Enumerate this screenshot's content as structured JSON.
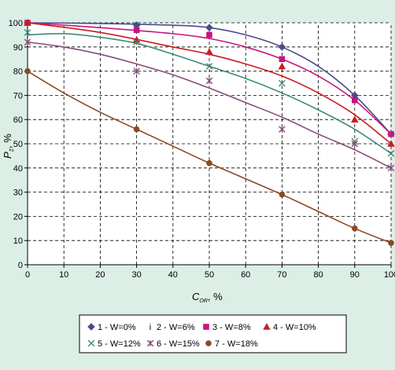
{
  "chart_data": {
    "type": "scatter",
    "xlabel": {
      "main": "C",
      "sub": "OR",
      "unit": ", %"
    },
    "ylabel": {
      "main": "P",
      "sub": "Σ",
      "unit": ", %"
    },
    "xlim": [
      0,
      100
    ],
    "ylim": [
      0,
      100
    ],
    "xticks": [
      0,
      10,
      20,
      30,
      40,
      50,
      60,
      70,
      80,
      90,
      100
    ],
    "yticks": [
      0,
      10,
      20,
      30,
      40,
      50,
      60,
      70,
      80,
      90,
      100
    ],
    "grid": true,
    "legend_position": "bottom",
    "series": [
      {
        "name": "1 - W=0%",
        "color": "#4a4a8c",
        "marker": "diamond",
        "x": [
          0,
          30,
          50,
          70,
          90,
          100
        ],
        "y": [
          100,
          99,
          98,
          90,
          70,
          54
        ],
        "curve": [
          [
            0,
            100
          ],
          [
            20,
            99.7
          ],
          [
            40,
            99
          ],
          [
            50,
            98
          ],
          [
            60,
            95
          ],
          [
            70,
            90
          ],
          [
            80,
            82
          ],
          [
            90,
            70
          ],
          [
            100,
            54
          ]
        ]
      },
      {
        "name": "2 - W=6%",
        "color": "#8a8a8a",
        "marker": "bar",
        "x": [
          0,
          30,
          50,
          70,
          90,
          100
        ],
        "y": [
          100,
          97,
          96,
          89,
          69,
          54
        ],
        "curve": []
      },
      {
        "name": "3 - W=8%",
        "color": "#c8157f",
        "marker": "square",
        "x": [
          0,
          30,
          50,
          70,
          90,
          100
        ],
        "y": [
          100,
          97,
          95,
          85,
          68,
          54
        ],
        "curve": [
          [
            0,
            100
          ],
          [
            20,
            98
          ],
          [
            40,
            95.5
          ],
          [
            50,
            93.5
          ],
          [
            60,
            90
          ],
          [
            70,
            85
          ],
          [
            80,
            78
          ],
          [
            90,
            68
          ],
          [
            100,
            54
          ]
        ]
      },
      {
        "name": "4 - W=10%",
        "color": "#c81e1e",
        "marker": "triangle",
        "x": [
          0,
          30,
          50,
          70,
          90,
          100
        ],
        "y": [
          100,
          93,
          88,
          82,
          60,
          50
        ],
        "curve": [
          [
            0,
            100
          ],
          [
            20,
            96
          ],
          [
            40,
            90
          ],
          [
            50,
            87
          ],
          [
            60,
            83
          ],
          [
            70,
            78
          ],
          [
            80,
            71
          ],
          [
            90,
            62
          ],
          [
            100,
            50
          ]
        ]
      },
      {
        "name": "5 - W=12%",
        "color": "#3f8a76",
        "marker": "x",
        "x": [
          0,
          30,
          50,
          70,
          90,
          100
        ],
        "y": [
          96,
          92,
          82,
          75,
          51,
          46
        ],
        "curve": [
          [
            0,
            95
          ],
          [
            10,
            95.5
          ],
          [
            20,
            94
          ],
          [
            30,
            91.5
          ],
          [
            40,
            87
          ],
          [
            50,
            82
          ],
          [
            60,
            77
          ],
          [
            70,
            71
          ],
          [
            80,
            64
          ],
          [
            90,
            56
          ],
          [
            100,
            46
          ]
        ]
      },
      {
        "name": "6 - W=15%",
        "color": "#8a4a7a",
        "marker": "star",
        "x": [
          0,
          30,
          50,
          70,
          90,
          100
        ],
        "y": [
          92,
          80,
          76,
          56,
          50,
          40
        ],
        "curve": [
          [
            0,
            92
          ],
          [
            10,
            90
          ],
          [
            20,
            87
          ],
          [
            30,
            83
          ],
          [
            40,
            78.5
          ],
          [
            50,
            73
          ],
          [
            60,
            67
          ],
          [
            70,
            61
          ],
          [
            80,
            54
          ],
          [
            90,
            47.5
          ],
          [
            100,
            40
          ]
        ]
      },
      {
        "name": "7 - W=18%",
        "color": "#8a4a25",
        "marker": "circle",
        "x": [
          0,
          30,
          50,
          70,
          90,
          100
        ],
        "y": [
          80,
          56,
          42,
          29,
          15,
          9
        ],
        "curve": [
          [
            0,
            80
          ],
          [
            10,
            71
          ],
          [
            20,
            63
          ],
          [
            30,
            56
          ],
          [
            40,
            49
          ],
          [
            50,
            42
          ],
          [
            60,
            35.5
          ],
          [
            70,
            29
          ],
          [
            80,
            22
          ],
          [
            90,
            15
          ],
          [
            100,
            9
          ]
        ]
      }
    ]
  }
}
